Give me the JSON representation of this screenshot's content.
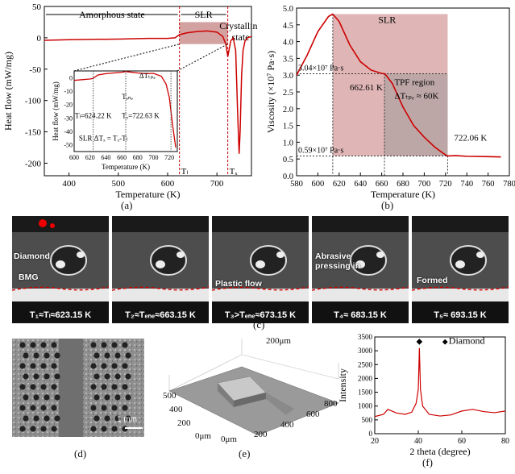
{
  "panel_a": {
    "label": "(a)",
    "chart_data": {
      "type": "line",
      "xlabel": "Temperature (K)",
      "ylabel": "Heat flow (mW/mg)",
      "xlim": [
        350,
        770
      ],
      "ylim": [
        -220,
        50
      ],
      "xticks": [
        "400",
        "500",
        "600",
        "700"
      ],
      "yticks": [
        "50",
        "0",
        "-50",
        "-100",
        "-150",
        "-200"
      ],
      "regions": [
        "Amorphous state",
        "SLR",
        "Crystalline state"
      ],
      "markers": [
        "Tₗ",
        "Tₓ"
      ],
      "series": [
        {
          "x": [
            350,
            400,
            500,
            560,
            600,
            615,
            624,
            640,
            660,
            680,
            700,
            712,
            718,
            722,
            728,
            733,
            738,
            742,
            745,
            747,
            750,
            753,
            757,
            762,
            770
          ],
          "y": [
            -4,
            -3,
            -2,
            -1,
            -1,
            0,
            5,
            8,
            10,
            11,
            9,
            2,
            -10,
            -30,
            -5,
            0,
            -20,
            -120,
            -185,
            -150,
            -60,
            -20,
            -5,
            0,
            2
          ]
        }
      ],
      "inset": {
        "xlabel": "Temperature (K)",
        "ylabel": "Heat flow (mW/mg)",
        "xlim": [
          600,
          730
        ],
        "ylim": [
          -55,
          5
        ],
        "xticks": [
          "600",
          "620",
          "640",
          "660",
          "680",
          "700",
          "720"
        ],
        "yticks": [
          "0",
          "-10",
          "-20",
          "-30",
          "-40",
          "-50"
        ],
        "annotations": [
          "Tₗ=624.22 K",
          "Tₑₙₑ",
          "Tₓ=722.63 K",
          "ΔTₜₚₑ",
          "SLR ΔTₓ = Tₓ-Tₗ"
        ],
        "x": [
          600,
          610,
          620,
          624,
          630,
          640,
          650,
          660,
          665,
          670,
          680,
          690,
          700,
          710,
          716,
          720,
          724,
          728
        ],
        "y": [
          -2,
          -1.5,
          -1,
          -0.5,
          2,
          3,
          3.5,
          4,
          4.5,
          4.2,
          3.5,
          3,
          3.2,
          1,
          -5,
          -15,
          -35,
          -52
        ]
      }
    }
  },
  "panel_b": {
    "label": "(b)",
    "chart_data": {
      "type": "line",
      "xlabel": "Temperature (K)",
      "ylabel": "Viscosity (×10⁷ Pa·s)",
      "xlim": [
        580,
        780
      ],
      "ylim": [
        0,
        5
      ],
      "xticks": [
        "580",
        "600",
        "620",
        "640",
        "660",
        "680",
        "700",
        "720",
        "740",
        "760",
        "780"
      ],
      "yticks": [
        "0.0",
        "0.5",
        "1.0",
        "1.5",
        "2.0",
        "2.5",
        "3.0",
        "3.5",
        "4.0",
        "4.5",
        "5.0"
      ],
      "annotations": [
        "SLR",
        "3.04×10⁷ Pa·s",
        "662.61 K",
        "TPF region",
        "ΔTₜₚₑ ≈ 60K",
        "722.06 K",
        "0.59×10⁷ Pa·s"
      ],
      "x": [
        580,
        590,
        600,
        610,
        614,
        620,
        630,
        640,
        650,
        660,
        663,
        670,
        680,
        690,
        700,
        710,
        720,
        722,
        730,
        740,
        760,
        772
      ],
      "y": [
        3.0,
        3.6,
        4.3,
        4.75,
        4.82,
        4.6,
        3.9,
        3.4,
        3.15,
        3.05,
        3.04,
        2.75,
        2.05,
        1.5,
        1.15,
        0.85,
        0.62,
        0.59,
        0.6,
        0.58,
        0.57,
        0.56
      ]
    }
  },
  "panel_c": {
    "label": "(c)",
    "frames": [
      {
        "caption": "T₁≈Tₗ≈623.15 K",
        "labels": [
          "Diamond",
          "BMG"
        ]
      },
      {
        "caption": "T₂≈Tₑₙₑ≈663.15 K",
        "labels": []
      },
      {
        "caption": "T₃>Tₑₙₑ≈673.15 K",
        "labels": [
          "Plastic flow"
        ]
      },
      {
        "caption": "T₄≈ 683.15 K",
        "labels": [
          "Abrasive",
          "pressing in"
        ]
      },
      {
        "caption": "T₅≈ 693.15 K",
        "labels": [
          "Formed"
        ]
      }
    ]
  },
  "panel_d": {
    "label": "(d)",
    "scale": "1 mm"
  },
  "panel_e": {
    "label": "(e)",
    "z": "200μm",
    "y_ticks": [
      "0μm",
      "200",
      "400",
      "500"
    ],
    "x_ticks": [
      "0μm",
      "200",
      "400",
      "600",
      "800"
    ]
  },
  "panel_f": {
    "label": "(f)",
    "chart_data": {
      "type": "line",
      "xlabel": "2 theta (degree)",
      "ylabel": "Intensity",
      "xlim": [
        20,
        80
      ],
      "ylim": [
        0,
        3500
      ],
      "xticks": [
        "20",
        "40",
        "60",
        "80"
      ],
      "yticks": [
        "0",
        "500",
        "1000",
        "1500",
        "2000",
        "2500",
        "3000",
        "3500"
      ],
      "legend": "Diamond",
      "x": [
        20,
        24,
        26,
        30,
        34,
        37,
        39,
        40,
        40.5,
        41,
        42,
        45,
        50,
        55,
        60,
        65,
        70,
        75,
        80
      ],
      "y": [
        620,
        700,
        880,
        750,
        700,
        780,
        1100,
        1600,
        3100,
        1600,
        1000,
        700,
        640,
        680,
        820,
        880,
        800,
        760,
        820
      ]
    }
  }
}
